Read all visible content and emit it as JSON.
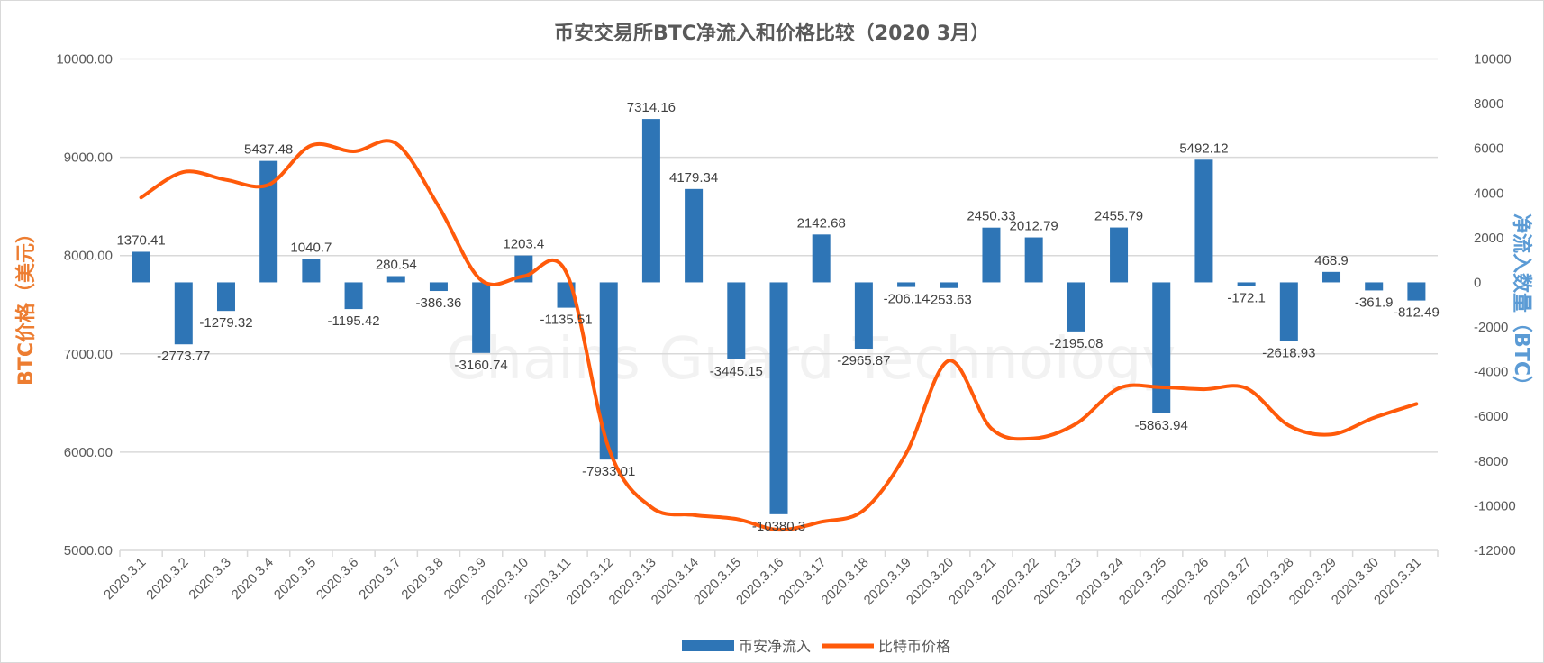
{
  "chart_data": {
    "type": "bar+line",
    "title": "币安交易所BTC净流入和价格比较（2020 3月）",
    "watermark": "Chains Guard Technology",
    "categories": [
      "2020.3.1",
      "2020.3.2",
      "2020.3.3",
      "2020.3.4",
      "2020.3.5",
      "2020.3.6",
      "2020.3.7",
      "2020.3.8",
      "2020.3.9",
      "2020.3.10",
      "2020.3.11",
      "2020.3.12",
      "2020.3.13",
      "2020.3.14",
      "2020.3.15",
      "2020.3.16",
      "2020.3.17",
      "2020.3.18",
      "2020.3.19",
      "2020.3.20",
      "2020.3.21",
      "2020.3.22",
      "2020.3.23",
      "2020.3.24",
      "2020.3.25",
      "2020.3.26",
      "2020.3.27",
      "2020.3.28",
      "2020.3.29",
      "2020.3.30",
      "2020.3.31"
    ],
    "series": [
      {
        "name": "币安净流入",
        "type": "bar",
        "axis": "right",
        "color": "#2e75b6",
        "values": [
          1370.41,
          -2773.77,
          -1279.32,
          5437.48,
          1040.7,
          -1195.42,
          280.54,
          -386.36,
          -3160.74,
          1203.4,
          -1135.51,
          -7933.01,
          7314.16,
          4179.34,
          -3445.15,
          -10380.3,
          2142.68,
          -2965.87,
          -206.14,
          -253.63,
          2450.33,
          2012.79,
          -2195.08,
          2455.79,
          -5863.94,
          5492.12,
          -172.1,
          -2618.93,
          468.9,
          -361.9,
          -812.49
        ],
        "labels": [
          "1370.41",
          "-2773.77",
          "-1279.32",
          "5437.48",
          "1040.7",
          "-1195.42",
          "280.54",
          "-386.36",
          "-3160.74",
          "1203.4",
          "-1135.51",
          "-7933.01",
          "7314.16",
          "4179.34",
          "-3445.15",
          "-10380.3",
          "2142.68",
          "-2965.87",
          "-206.14",
          "-253.63",
          "2450.33",
          "2012.79",
          "-2195.08",
          "2455.79",
          "-5863.94",
          "5492.12",
          "-172.1",
          "-2618.93",
          "468.9",
          "-361.9",
          "-812.49"
        ]
      },
      {
        "name": "比特币价格",
        "type": "line",
        "axis": "left",
        "color": "#ff5a0a",
        "values": [
          8590,
          8850,
          8770,
          8720,
          9120,
          9060,
          9140,
          8500,
          7750,
          7790,
          7830,
          6040,
          5440,
          5360,
          5320,
          5210,
          5290,
          5410,
          5990,
          6930,
          6240,
          6140,
          6290,
          6650,
          6660,
          6640,
          6650,
          6270,
          6180,
          6350,
          6490
        ]
      }
    ],
    "y_left": {
      "label": "BTC价格（美元）",
      "range": [
        5000,
        10000
      ],
      "ticks": [
        "5000.00",
        "6000.00",
        "7000.00",
        "8000.00",
        "9000.00",
        "10000.00"
      ],
      "color": "#ed7d31"
    },
    "y_right": {
      "label": "净流入数量（BTC）",
      "range": [
        -12000,
        10000
      ],
      "ticks": [
        "-12000",
        "-10000",
        "-8000",
        "-6000",
        "-4000",
        "-2000",
        "0",
        "2000",
        "4000",
        "6000",
        "8000",
        "10000"
      ],
      "color": "#5b9bd5"
    },
    "grid": true,
    "legend": {
      "position": "bottom",
      "items": [
        "币安净流入",
        "比特币价格"
      ]
    }
  }
}
